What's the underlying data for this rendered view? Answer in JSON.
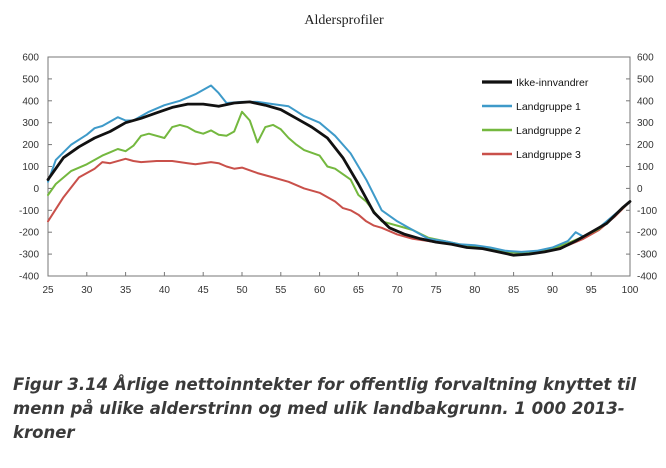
{
  "chart_data": {
    "type": "line",
    "title": "Aldersprofiler",
    "xlabel": "",
    "ylabel": "",
    "xlim": [
      25,
      100
    ],
    "ylim": [
      -400,
      600
    ],
    "x_ticks": [
      25,
      30,
      35,
      40,
      45,
      50,
      55,
      60,
      65,
      70,
      75,
      80,
      85,
      90,
      95,
      100
    ],
    "y_ticks": [
      -400,
      -300,
      -200,
      -100,
      0,
      100,
      200,
      300,
      400,
      500,
      600
    ],
    "grid": false,
    "legend_position": "top-right",
    "series": [
      {
        "name": "Ikke-innvandrer",
        "color": "#111111",
        "width": 2.8,
        "x": [
          25,
          27,
          29,
          31,
          33,
          35,
          37,
          39,
          41,
          43,
          45,
          47,
          49,
          51,
          53,
          55,
          57,
          59,
          61,
          63,
          65,
          67,
          69,
          71,
          73,
          75,
          77,
          79,
          81,
          83,
          85,
          87,
          89,
          91,
          93,
          95,
          97,
          99,
          100
        ],
        "y": [
          40,
          140,
          190,
          230,
          260,
          300,
          320,
          345,
          370,
          385,
          385,
          375,
          390,
          395,
          380,
          360,
          320,
          280,
          230,
          140,
          20,
          -110,
          -180,
          -210,
          -230,
          -245,
          -255,
          -270,
          -275,
          -290,
          -305,
          -300,
          -290,
          -275,
          -240,
          -200,
          -160,
          -90,
          -60
        ]
      },
      {
        "name": "Landgruppe 1",
        "color": "#3e9ac9",
        "width": 2,
        "x": [
          25,
          26,
          28,
          30,
          31,
          32,
          34,
          35,
          36,
          38,
          40,
          42,
          44,
          46,
          47,
          48,
          50,
          52,
          54,
          56,
          58,
          60,
          62,
          64,
          66,
          68,
          70,
          72,
          74,
          76,
          78,
          80,
          82,
          84,
          86,
          88,
          90,
          92,
          93,
          94,
          96,
          98,
          100
        ],
        "y": [
          30,
          130,
          200,
          245,
          275,
          285,
          325,
          310,
          310,
          350,
          380,
          400,
          430,
          470,
          435,
          390,
          395,
          395,
          385,
          375,
          330,
          300,
          240,
          160,
          40,
          -100,
          -150,
          -190,
          -230,
          -240,
          -255,
          -260,
          -270,
          -285,
          -290,
          -285,
          -270,
          -240,
          -200,
          -220,
          -180,
          -120,
          -60
        ]
      },
      {
        "name": "Landgruppe 2",
        "color": "#74b83f",
        "width": 2,
        "x": [
          25,
          26,
          28,
          30,
          32,
          33,
          34,
          35,
          36,
          37,
          38,
          40,
          41,
          42,
          43,
          44,
          45,
          46,
          47,
          48,
          49,
          50,
          51,
          52,
          53,
          54,
          55,
          56,
          57,
          58,
          60,
          61,
          62,
          64,
          65,
          66,
          68,
          70,
          72,
          74,
          76,
          78,
          80,
          82,
          84,
          86,
          88,
          90,
          92,
          94,
          96,
          98,
          100
        ],
        "y": [
          -30,
          20,
          80,
          110,
          150,
          165,
          180,
          170,
          195,
          240,
          250,
          230,
          280,
          290,
          280,
          260,
          250,
          265,
          245,
          240,
          260,
          350,
          310,
          210,
          280,
          290,
          270,
          230,
          200,
          175,
          150,
          100,
          90,
          40,
          -30,
          -60,
          -150,
          -170,
          -190,
          -225,
          -240,
          -255,
          -265,
          -275,
          -290,
          -295,
          -290,
          -275,
          -250,
          -220,
          -185,
          -125,
          -60
        ]
      },
      {
        "name": "Landgruppe 3",
        "color": "#c9504a",
        "width": 2,
        "x": [
          25,
          27,
          29,
          31,
          32,
          33,
          35,
          36,
          37,
          39,
          41,
          43,
          44,
          46,
          47,
          48,
          49,
          50,
          52,
          54,
          56,
          58,
          60,
          62,
          63,
          64,
          65,
          66,
          67,
          68,
          70,
          72,
          74,
          76,
          78,
          80,
          82,
          84,
          86,
          88,
          90,
          92,
          94,
          96,
          98,
          100
        ],
        "y": [
          -150,
          -40,
          50,
          90,
          120,
          115,
          135,
          125,
          120,
          125,
          125,
          115,
          110,
          120,
          115,
          100,
          90,
          95,
          70,
          50,
          30,
          0,
          -20,
          -60,
          -90,
          -100,
          -120,
          -150,
          -170,
          -180,
          -210,
          -230,
          -240,
          -250,
          -260,
          -270,
          -280,
          -290,
          -295,
          -295,
          -280,
          -260,
          -230,
          -190,
          -130,
          -60
        ]
      }
    ]
  },
  "caption": {
    "text": "Figur 3.14 Årlige nettoinntekter for offentlig forvaltning knyttet til menn på ulike alderstrinn og med ulik landbakgrunn. 1 000 2013-kroner"
  }
}
